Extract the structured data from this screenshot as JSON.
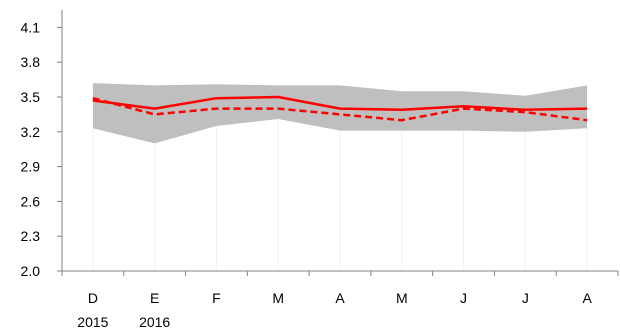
{
  "chart_data": {
    "type": "line",
    "title": "",
    "xlabel": "",
    "ylabel": "",
    "categories": [
      "D",
      "E",
      "F",
      "M",
      "A",
      "M",
      "J",
      "J",
      "A"
    ],
    "category_sublabels": [
      "2015",
      "2016",
      "",
      "",
      "",
      "",
      "",
      "",
      ""
    ],
    "ylim": [
      2.0,
      4.25
    ],
    "yticks": [
      "2.0",
      "2.3",
      "2.6",
      "2.9",
      "3.2",
      "3.5",
      "3.8",
      "4.1"
    ],
    "grid": false,
    "legend": "none",
    "band": {
      "color": "#bfbfbf",
      "upper": [
        3.62,
        3.6,
        3.61,
        3.6,
        3.6,
        3.55,
        3.55,
        3.51,
        3.6
      ],
      "lower": [
        3.23,
        3.1,
        3.25,
        3.31,
        3.21,
        3.21,
        3.21,
        3.2,
        3.23
      ]
    },
    "series": [
      {
        "style": "solid",
        "color": "#ff0000",
        "values": [
          3.47,
          3.4,
          3.49,
          3.5,
          3.4,
          3.39,
          3.42,
          3.39,
          3.4
        ]
      },
      {
        "style": "dashed",
        "color": "#ff0000",
        "values": [
          3.49,
          3.35,
          3.4,
          3.4,
          3.35,
          3.3,
          3.4,
          3.37,
          3.3
        ]
      }
    ]
  }
}
